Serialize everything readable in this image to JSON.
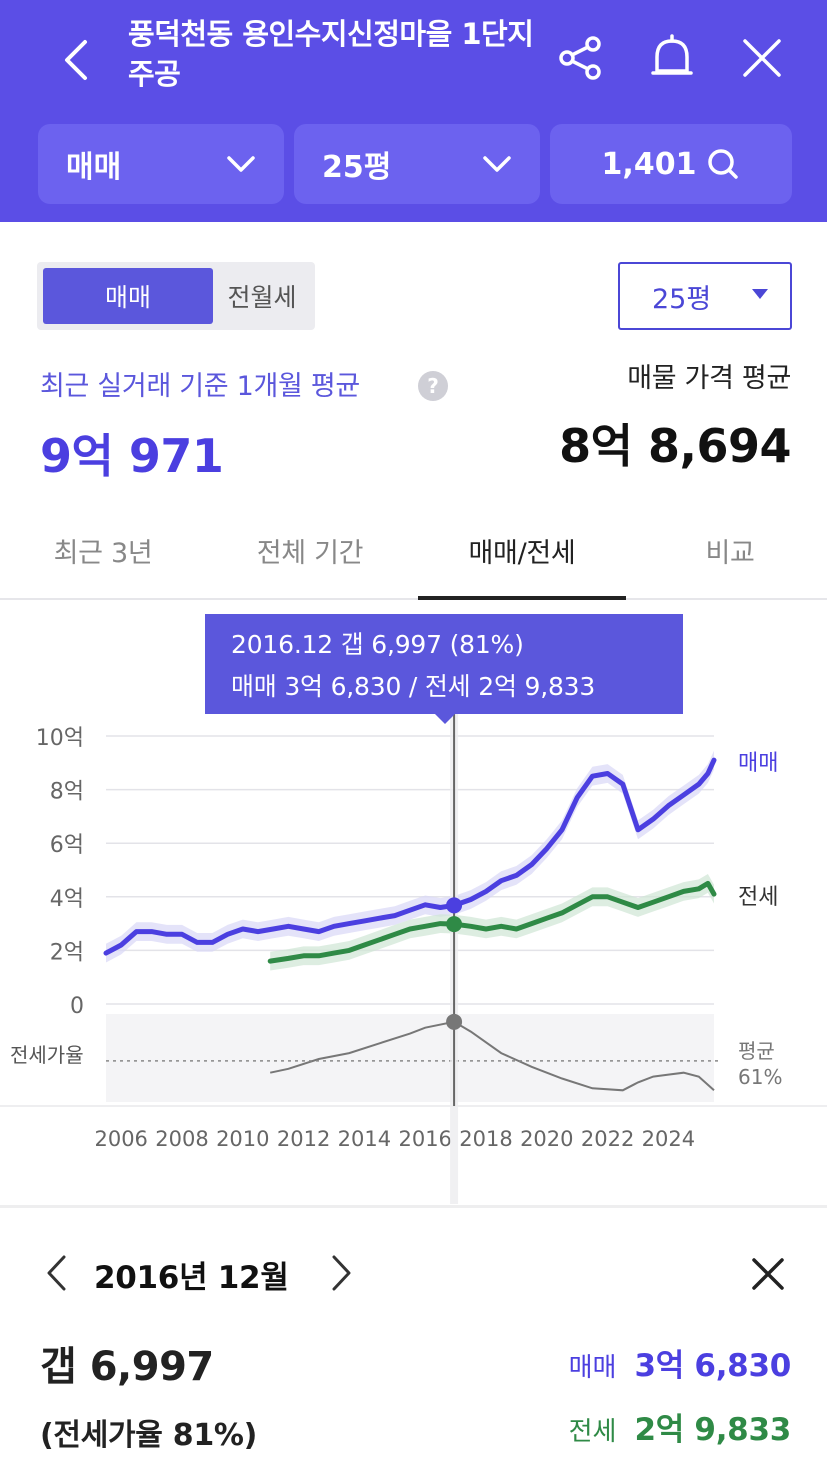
{
  "header": {
    "title": "풍덕천동 용인수지신정마을 1단지주공",
    "filters": {
      "deal_type": "매매",
      "size": "25평",
      "listing_count": "1,401"
    }
  },
  "segment": {
    "sale": "매매",
    "rent": "전월세"
  },
  "size_select": "25평",
  "summary": {
    "recent_label": "최근 실거래 기준 1개월 평균",
    "help_symbol": "?",
    "recent_value": "9억 971",
    "listing_label": "매물 가격 평균",
    "listing_value": "8억 8,694"
  },
  "tabs": [
    "최근 3년",
    "전체 기간",
    "매매/전세",
    "비교"
  ],
  "active_tab": 2,
  "tooltip": {
    "line1": "2016.12  갭 6,997 (81%)",
    "line2": "매매 3억 6,830 / 전세 2억 9,833"
  },
  "colors": {
    "header_bg": "#5b4ee6",
    "sale": "#4b3fe0",
    "jeonse": "#2f8a46",
    "ratio": "#777777"
  },
  "chart_data": {
    "type": "line",
    "y_axis_ticks": [
      "10억",
      "8억",
      "6억",
      "4억",
      "2억",
      "0"
    ],
    "ylim": [
      0,
      10
    ],
    "x_axis_ticks": [
      "2006",
      "2008",
      "2010",
      "2012",
      "2014",
      "2016",
      "2018",
      "2020",
      "2022",
      "2024"
    ],
    "series": [
      {
        "name": "매매",
        "unit": "억",
        "points": [
          [
            2005.5,
            1.9
          ],
          [
            2006.0,
            2.2
          ],
          [
            2006.5,
            2.7
          ],
          [
            2007.0,
            2.7
          ],
          [
            2007.5,
            2.6
          ],
          [
            2008.0,
            2.6
          ],
          [
            2008.5,
            2.3
          ],
          [
            2009.0,
            2.3
          ],
          [
            2009.5,
            2.6
          ],
          [
            2010.0,
            2.8
          ],
          [
            2010.5,
            2.7
          ],
          [
            2011.0,
            2.8
          ],
          [
            2011.5,
            2.9
          ],
          [
            2012.0,
            2.8
          ],
          [
            2012.5,
            2.7
          ],
          [
            2013.0,
            2.9
          ],
          [
            2013.5,
            3.0
          ],
          [
            2014.0,
            3.1
          ],
          [
            2014.5,
            3.2
          ],
          [
            2015.0,
            3.3
          ],
          [
            2015.5,
            3.5
          ],
          [
            2016.0,
            3.7
          ],
          [
            2016.5,
            3.6
          ],
          [
            2016.95,
            3.68
          ],
          [
            2017.5,
            3.9
          ],
          [
            2018.0,
            4.2
          ],
          [
            2018.5,
            4.6
          ],
          [
            2019.0,
            4.8
          ],
          [
            2019.5,
            5.2
          ],
          [
            2020.0,
            5.8
          ],
          [
            2020.5,
            6.5
          ],
          [
            2021.0,
            7.7
          ],
          [
            2021.5,
            8.5
          ],
          [
            2022.0,
            8.6
          ],
          [
            2022.5,
            8.2
          ],
          [
            2023.0,
            6.5
          ],
          [
            2023.5,
            6.9
          ],
          [
            2024.0,
            7.4
          ],
          [
            2024.5,
            7.8
          ],
          [
            2025.0,
            8.2
          ],
          [
            2025.3,
            8.6
          ],
          [
            2025.5,
            9.1
          ]
        ]
      },
      {
        "name": "전세",
        "unit": "억",
        "points": [
          [
            2010.9,
            1.6
          ],
          [
            2011.5,
            1.7
          ],
          [
            2012.0,
            1.8
          ],
          [
            2012.5,
            1.8
          ],
          [
            2013.0,
            1.9
          ],
          [
            2013.5,
            2.0
          ],
          [
            2014.0,
            2.2
          ],
          [
            2014.5,
            2.4
          ],
          [
            2015.0,
            2.6
          ],
          [
            2015.5,
            2.8
          ],
          [
            2016.0,
            2.9
          ],
          [
            2016.5,
            3.0
          ],
          [
            2016.95,
            2.98
          ],
          [
            2017.5,
            2.9
          ],
          [
            2018.0,
            2.8
          ],
          [
            2018.5,
            2.9
          ],
          [
            2019.0,
            2.8
          ],
          [
            2019.5,
            3.0
          ],
          [
            2020.0,
            3.2
          ],
          [
            2020.5,
            3.4
          ],
          [
            2021.0,
            3.7
          ],
          [
            2021.5,
            4.0
          ],
          [
            2022.0,
            4.0
          ],
          [
            2022.5,
            3.8
          ],
          [
            2023.0,
            3.6
          ],
          [
            2023.5,
            3.8
          ],
          [
            2024.0,
            4.0
          ],
          [
            2024.5,
            4.2
          ],
          [
            2025.0,
            4.3
          ],
          [
            2025.3,
            4.5
          ],
          [
            2025.5,
            4.1
          ]
        ]
      }
    ],
    "ratio_series": {
      "name": "전세가율",
      "unit": "%",
      "average_label": "평균",
      "average_value": "61%",
      "points": [
        [
          2010.9,
          55
        ],
        [
          2011.5,
          57
        ],
        [
          2012.5,
          62
        ],
        [
          2013.5,
          65
        ],
        [
          2014.5,
          70
        ],
        [
          2015.5,
          75
        ],
        [
          2016.0,
          78
        ],
        [
          2016.95,
          81
        ],
        [
          2017.5,
          76
        ],
        [
          2018.5,
          65
        ],
        [
          2019.5,
          58
        ],
        [
          2020.5,
          52
        ],
        [
          2021.5,
          47
        ],
        [
          2022.5,
          46
        ],
        [
          2023.0,
          50
        ],
        [
          2023.5,
          53
        ],
        [
          2024.0,
          54
        ],
        [
          2024.5,
          55
        ],
        [
          2025.0,
          53
        ],
        [
          2025.5,
          46
        ]
      ]
    },
    "series_labels": [
      "매매",
      "전세"
    ],
    "selected_x": 2016.95,
    "legend": "right"
  },
  "detail": {
    "month": "2016년 12월",
    "gap": "갭 6,997",
    "ratio": "(전세가율 81%)",
    "sale_label": "매매",
    "sale_value": "3억 6,830",
    "jeonse_label": "전세",
    "jeonse_value": "2억 9,833"
  }
}
